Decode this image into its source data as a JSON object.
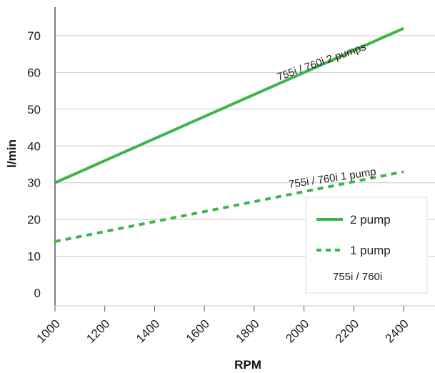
{
  "chart_data": {
    "type": "line",
    "xlabel": "RPM",
    "ylabel": "l/min",
    "xlim": [
      1000,
      2400
    ],
    "ylim": [
      0,
      70
    ],
    "x_ticks": [
      "1000",
      "1200",
      "1400",
      "1600",
      "1800",
      "2000",
      "2200",
      "2400"
    ],
    "y_ticks": [
      "0",
      "10",
      "20",
      "30",
      "40",
      "50",
      "60",
      "70"
    ],
    "grid": "horizontal",
    "series": [
      {
        "name": "2 pump",
        "label": "755i / 760i 2 pumps",
        "style": "solid",
        "x": [
          1000,
          2400
        ],
        "y": [
          30,
          72
        ]
      },
      {
        "name": "1 pump",
        "label": "755i / 760i 1 pump",
        "style": "dashed",
        "x": [
          1000,
          2400
        ],
        "y": [
          14,
          33
        ]
      }
    ],
    "legend": {
      "placement": "bottom-right",
      "entries": [
        "2 pump",
        "1 pump"
      ],
      "note": "755i / 760i"
    },
    "colors": {
      "line": "#3db54a",
      "grid": "#cccccc",
      "axis": "#555555"
    }
  }
}
